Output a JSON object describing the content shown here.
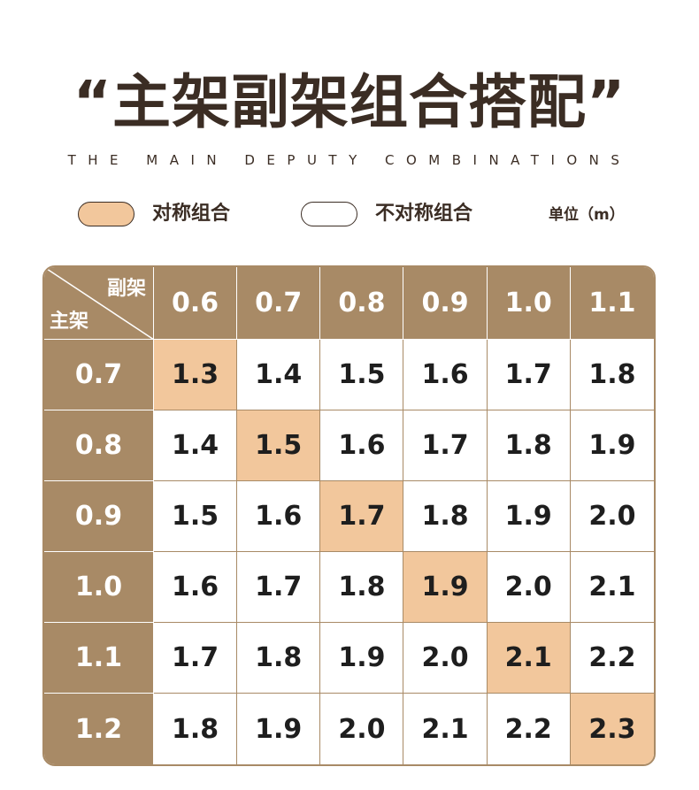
{
  "title": "“主架副架组合搭配”",
  "subtitle": "THE MAIN DEPUTY COMBINATIONS",
  "legend": {
    "symmetric_label": "对称组合",
    "asymmetric_label": "不对称组合",
    "unit": "单位（m）",
    "symmetric_color": "#f2c79c",
    "asymmetric_color": "#ffffff"
  },
  "table": {
    "corner_top": "副架",
    "corner_bottom": "主架",
    "columns": [
      "0.6",
      "0.7",
      "0.8",
      "0.9",
      "1.0",
      "1.1"
    ],
    "rows": [
      {
        "header": "0.7",
        "values": [
          "1.3",
          "1.4",
          "1.5",
          "1.6",
          "1.7",
          "1.8"
        ]
      },
      {
        "header": "0.8",
        "values": [
          "1.4",
          "1.5",
          "1.6",
          "1.7",
          "1.8",
          "1.9"
        ]
      },
      {
        "header": "0.9",
        "values": [
          "1.5",
          "1.6",
          "1.7",
          "1.8",
          "1.9",
          "2.0"
        ]
      },
      {
        "header": "1.0",
        "values": [
          "1.6",
          "1.7",
          "1.8",
          "1.9",
          "2.0",
          "2.1"
        ]
      },
      {
        "header": "1.1",
        "values": [
          "1.7",
          "1.8",
          "1.9",
          "2.0",
          "2.1",
          "2.2"
        ]
      },
      {
        "header": "1.2",
        "values": [
          "1.8",
          "1.9",
          "2.0",
          "2.1",
          "2.2",
          "2.3"
        ]
      }
    ],
    "header_color": "#a88a66",
    "highlight_color": "#f2c79c"
  }
}
